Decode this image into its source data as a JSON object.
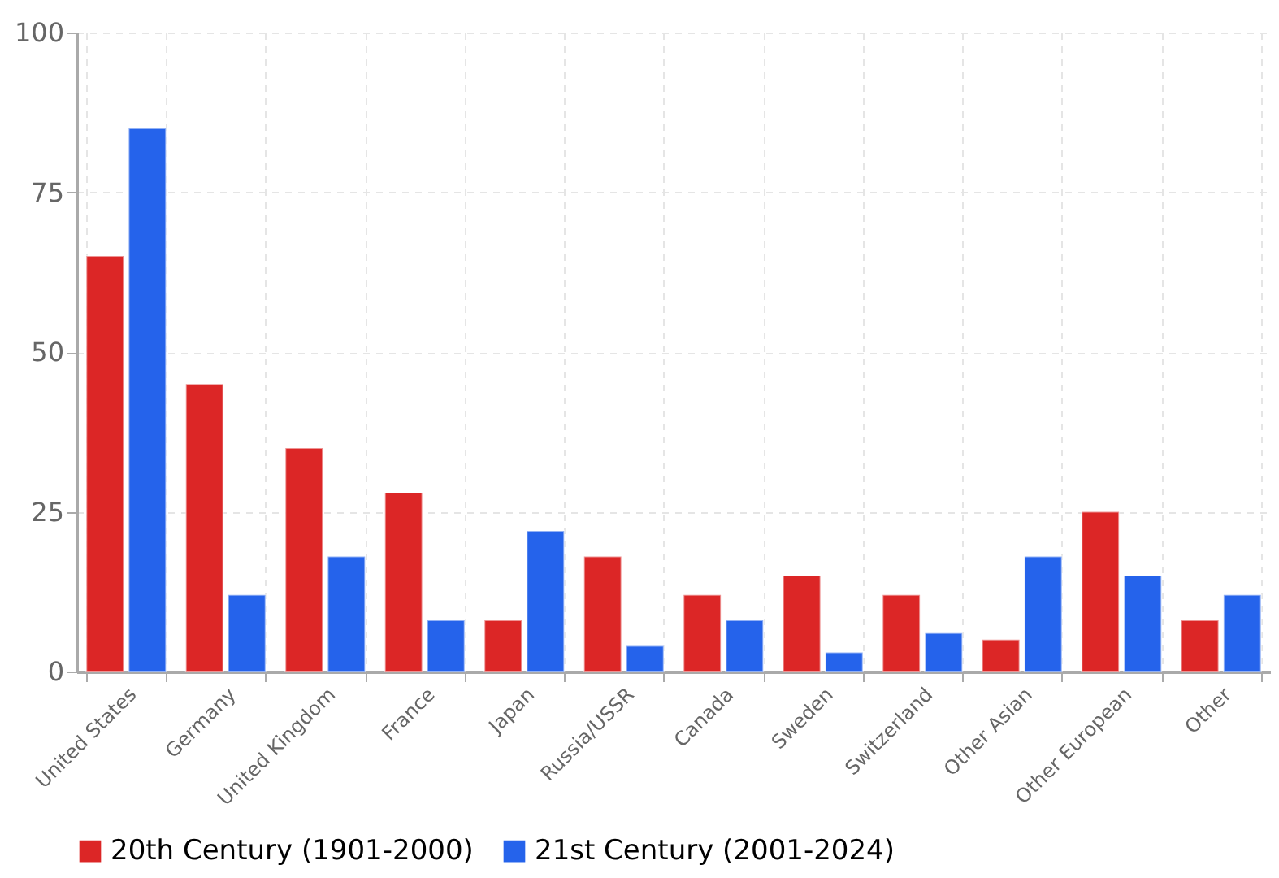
{
  "chart_data": {
    "type": "bar",
    "categories": [
      "United States",
      "Germany",
      "United Kingdom",
      "France",
      "Japan",
      "Russia/USSR",
      "Canada",
      "Sweden",
      "Switzerland",
      "Other Asian",
      "Other European",
      "Other"
    ],
    "series": [
      {
        "name": "20th Century (1901-2000)",
        "color": "#dc2626",
        "values": [
          65,
          45,
          35,
          28,
          8,
          18,
          12,
          15,
          12,
          5,
          25,
          8
        ]
      },
      {
        "name": "21st Century (2001-2024)",
        "color": "#2563eb",
        "values": [
          85,
          12,
          18,
          8,
          22,
          4,
          8,
          3,
          6,
          18,
          15,
          12
        ]
      }
    ],
    "ylim": [
      0,
      100
    ],
    "yticks": [
      0,
      25,
      50,
      75,
      100
    ],
    "grid": true,
    "legend": "bottom"
  }
}
